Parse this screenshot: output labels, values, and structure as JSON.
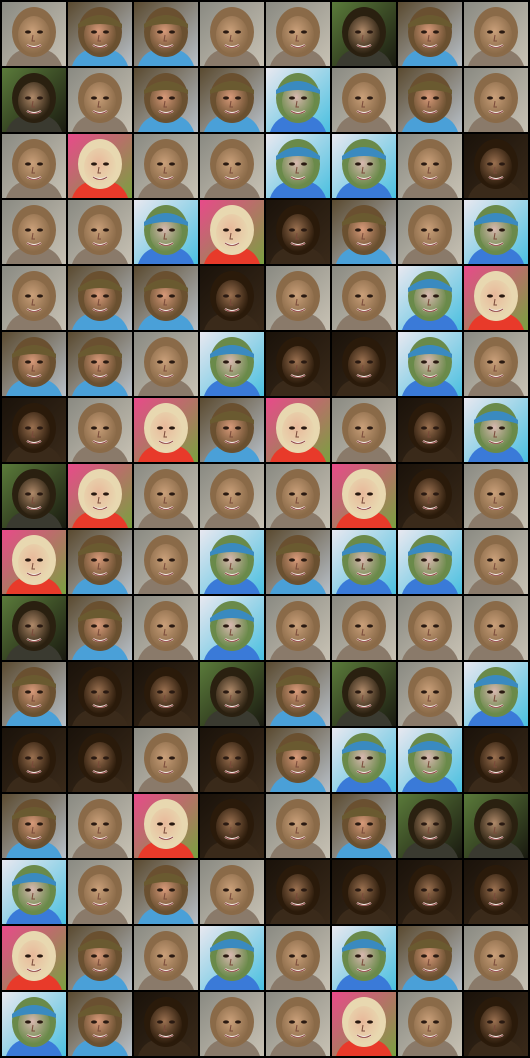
{
  "grid": {
    "columns": 8,
    "rows": 16,
    "tile_variants": {
      "A": {
        "bg": "#8a8a82",
        "bg2": "#c8c2b4",
        "skin": "#caa07a",
        "hair": "#8a6a48",
        "hat": null,
        "shirt": "#8a7a6a"
      },
      "B": {
        "bg": "#5a4a30",
        "bg2": "#b8c0c8",
        "skin": "#d89a7a",
        "hair": "#6a5030",
        "hat": "#6a5a30",
        "shirt": "#4aa0d8"
      },
      "C": {
        "bg": "#5a7a3a",
        "bg2": "#1a1a10",
        "skin": "#b08a6a",
        "hair": "#2a2010",
        "hat": null,
        "shirt": "#3a3a30"
      },
      "D": {
        "bg": "#e8e8f0",
        "bg2": "#4ac0e0",
        "skin": "#d8b8b0",
        "hair": "#6a8a4a",
        "hat": "#3a8ac0",
        "shirt": "#3a7ad8"
      },
      "E": {
        "bg": "#e84a8a",
        "bg2": "#7aa040",
        "skin": "#e8b89a",
        "hair": "#e8d8b0",
        "hat": null,
        "shirt": "#e83a2a"
      },
      "F": {
        "bg": "#1a120a",
        "bg2": "#3a2a1a",
        "skin": "#9a7050",
        "hair": "#2a1a0a",
        "hat": null,
        "shirt": "#3a2a1a"
      }
    },
    "tiles": [
      "A",
      "B",
      "B",
      "A",
      "A",
      "C",
      "B",
      "A",
      "C",
      "A",
      "B",
      "B",
      "D",
      "A",
      "B",
      "A",
      "A",
      "E",
      "A",
      "A",
      "D",
      "D",
      "A",
      "F",
      "A",
      "A",
      "D",
      "E",
      "F",
      "B",
      "A",
      "D",
      "A",
      "B",
      "B",
      "F",
      "A",
      "A",
      "D",
      "E",
      "B",
      "B",
      "A",
      "D",
      "F",
      "F",
      "D",
      "A",
      "F",
      "A",
      "E",
      "B",
      "E",
      "A",
      "F",
      "D",
      "C",
      "E",
      "A",
      "A",
      "A",
      "E",
      "F",
      "A",
      "E",
      "B",
      "A",
      "D",
      "B",
      "D",
      "D",
      "A",
      "C",
      "B",
      "A",
      "D",
      "A",
      "A",
      "A",
      "A",
      "B",
      "F",
      "F",
      "C",
      "B",
      "C",
      "A",
      "D",
      "F",
      "F",
      "A",
      "F",
      "B",
      "D",
      "D",
      "F",
      "B",
      "A",
      "E",
      "F",
      "A",
      "B",
      "C",
      "C",
      "D",
      "A",
      "B",
      "A",
      "F",
      "F",
      "F",
      "F",
      "E",
      "B",
      "A",
      "D",
      "A",
      "D",
      "B",
      "A",
      "D",
      "B",
      "F",
      "A",
      "A",
      "E",
      "A",
      "F"
    ]
  }
}
